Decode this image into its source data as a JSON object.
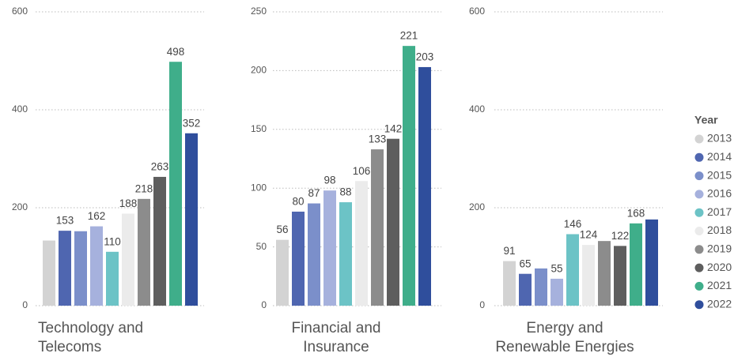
{
  "chart_data": [
    {
      "type": "bar",
      "title": [
        "Technology and",
        "Telecoms"
      ],
      "values": [
        133,
        153,
        152,
        162,
        110,
        188,
        218,
        263,
        498,
        352
      ],
      "value_labels": [
        null,
        "153",
        null,
        "162",
        "110",
        "188",
        "218",
        "263",
        "498",
        "352"
      ],
      "ylim": [
        0,
        600
      ],
      "yticks": [
        0,
        200,
        400,
        600
      ],
      "grid": true
    },
    {
      "type": "bar",
      "title": [
        "Financial and",
        "Insurance"
      ],
      "values": [
        56,
        80,
        87,
        98,
        88,
        106,
        133,
        142,
        221,
        203
      ],
      "value_labels": [
        "56",
        "80",
        "87",
        "98",
        "88",
        "106",
        "133",
        "142",
        "221",
        "203"
      ],
      "ylim": [
        0,
        250
      ],
      "yticks": [
        0,
        50,
        100,
        150,
        200,
        250
      ],
      "grid": true
    },
    {
      "type": "bar",
      "title": [
        "Energy and",
        "Renewable Energies"
      ],
      "values": [
        91,
        65,
        76,
        55,
        146,
        124,
        132,
        122,
        168,
        176
      ],
      "value_labels": [
        "91",
        "65",
        null,
        "55",
        "146",
        "124",
        null,
        "122",
        "168",
        null
      ],
      "ylim": [
        0,
        600
      ],
      "yticks": [
        0,
        200,
        400,
        600
      ],
      "grid": true
    }
  ],
  "legend": {
    "title": "Year",
    "labels": [
      "2013",
      "2014",
      "2015",
      "2016",
      "2017",
      "2018",
      "2019",
      "2020",
      "2021",
      "2022"
    ],
    "colors": [
      "#d3d3d3",
      "#4f66b0",
      "#7b8fca",
      "#a6b1dd",
      "#6cc3c6",
      "#ebebeb",
      "#8c8c8c",
      "#5e5e5e",
      "#3fae8a",
      "#2f4e9c"
    ]
  }
}
